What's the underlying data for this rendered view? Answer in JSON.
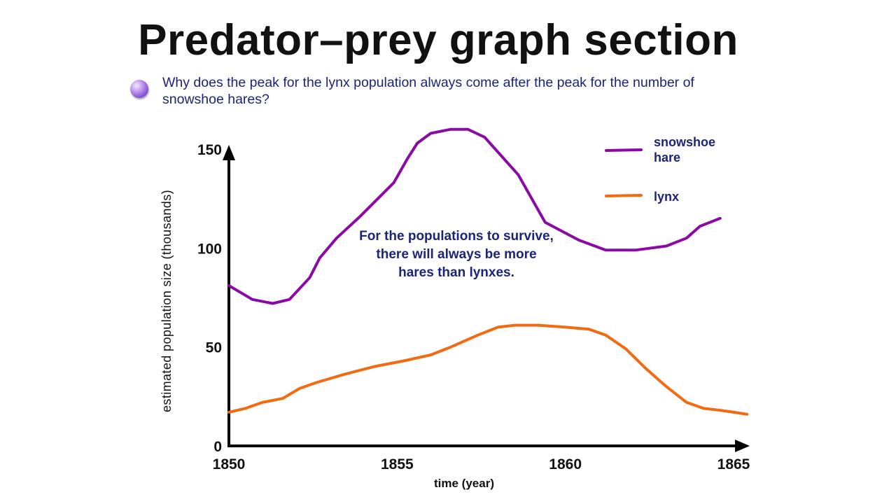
{
  "slide": {
    "title": "Predator–prey graph section",
    "question": "Why does the peak for the lynx population always come after the peak for the number of snowshoe hares?"
  },
  "chart_data": {
    "type": "line",
    "xlabel": "time (year)",
    "ylabel": "estimated population size (thousands)",
    "xlim": [
      1850,
      1865
    ],
    "ylim": [
      0,
      150
    ],
    "x_ticks": [
      "1850",
      "1855",
      "1860",
      "1865"
    ],
    "y_ticks": [
      "0",
      "50",
      "100",
      "150"
    ],
    "grid": false,
    "legend_position": "top-right",
    "annotation": "For the populations to survive, there will always be more hares than lynxes.",
    "series": [
      {
        "name": "snowshoe hare",
        "color": "#8b0aa5",
        "points": [
          [
            1850,
            81
          ],
          [
            1850.7,
            74
          ],
          [
            1851.3,
            72
          ],
          [
            1851.8,
            74
          ],
          [
            1852.4,
            85
          ],
          [
            1852.7,
            95
          ],
          [
            1853.2,
            105
          ],
          [
            1853.9,
            116
          ],
          [
            1854.9,
            133
          ],
          [
            1855.3,
            145
          ],
          [
            1855.6,
            153
          ],
          [
            1856,
            158
          ],
          [
            1856.6,
            160
          ],
          [
            1857.1,
            160
          ],
          [
            1857.6,
            156
          ],
          [
            1858.6,
            137
          ],
          [
            1859.4,
            113
          ],
          [
            1860.4,
            104
          ],
          [
            1861.2,
            99
          ],
          [
            1862.1,
            99
          ],
          [
            1863,
            101
          ],
          [
            1863.6,
            105
          ],
          [
            1864,
            111
          ],
          [
            1864.6,
            115
          ]
        ]
      },
      {
        "name": "lynx",
        "color": "#f36a10",
        "points": [
          [
            1850,
            17
          ],
          [
            1850.5,
            19
          ],
          [
            1851,
            22
          ],
          [
            1851.6,
            24
          ],
          [
            1852.1,
            29
          ],
          [
            1852.6,
            32
          ],
          [
            1853.4,
            36
          ],
          [
            1854.3,
            40
          ],
          [
            1855.2,
            43
          ],
          [
            1856,
            46
          ],
          [
            1856.6,
            50
          ],
          [
            1857.4,
            56
          ],
          [
            1858,
            60
          ],
          [
            1858.5,
            61
          ],
          [
            1859.2,
            61
          ],
          [
            1860,
            60
          ],
          [
            1860.7,
            59
          ],
          [
            1861.2,
            56
          ],
          [
            1861.8,
            49
          ],
          [
            1862.4,
            39
          ],
          [
            1863,
            30
          ],
          [
            1863.6,
            22
          ],
          [
            1864.1,
            19
          ],
          [
            1864.6,
            18
          ],
          [
            1865,
            17
          ],
          [
            1865.4,
            16
          ]
        ]
      }
    ]
  }
}
